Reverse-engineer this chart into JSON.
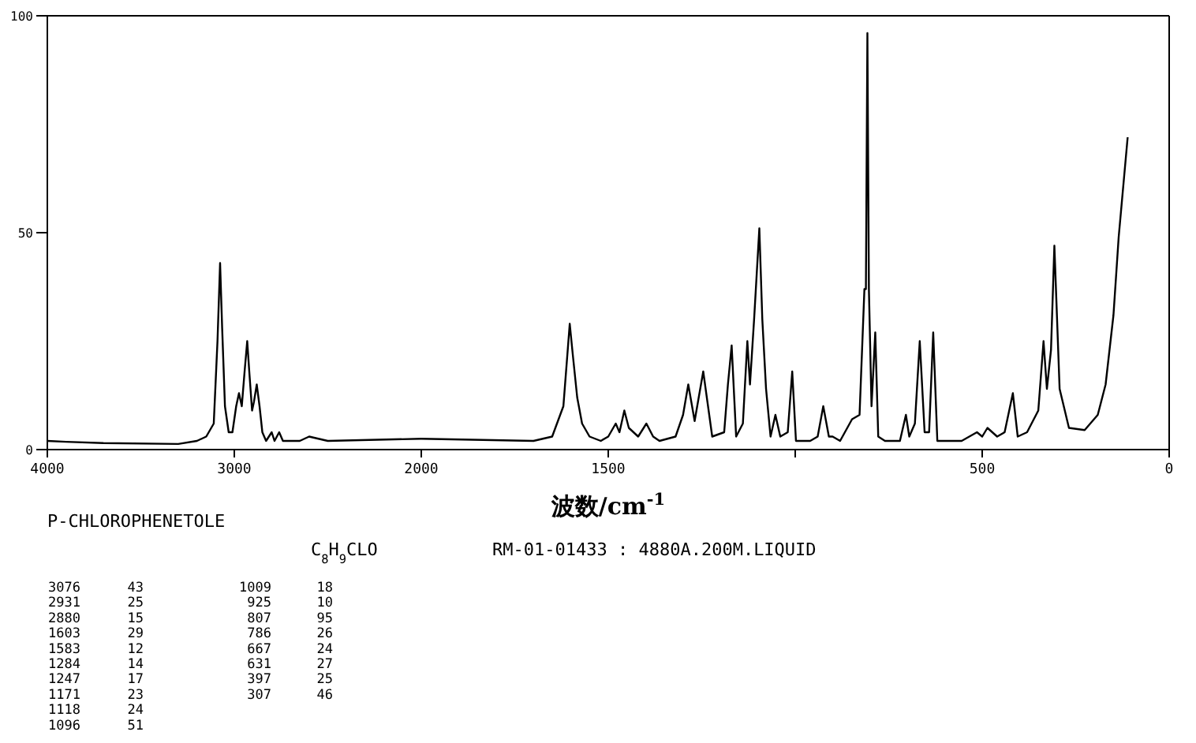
{
  "chart_data": [
    {
      "type": "line",
      "title": "P-CHLOROPHENETOLE",
      "subtitle": "C$_{8}$H$_{9}$CLO",
      "xlabel": "波数/cm$^{-1}$",
      "annotations": [
        "RM-01-01433 : 4880A.200M.LIQUID",
        "3076",
        "43",
        "2931",
        "25",
        "2880",
        "15",
        "1603",
        "29",
        "1583",
        "12",
        "1284",
        "14",
        "1247",
        "17",
        "1171",
        "23",
        "1118",
        "24",
        "1096",
        "51",
        "1009",
        "18",
        "925",
        "10",
        "807",
        "95",
        "786",
        "26",
        "667",
        "24",
        "631",
        "27",
        "397",
        "25",
        "307",
        "46"
      ],
      "x": [
        4000,
        3900,
        3700,
        3300,
        3200,
        3150,
        3110,
        3090,
        3076,
        3065,
        3050,
        3030,
        3010,
        2990,
        2975,
        2960,
        2945,
        2931,
        2920,
        2905,
        2895,
        2880,
        2865,
        2850,
        2830,
        2800,
        2785,
        2760,
        2740,
        2650,
        2600,
        2550,
        2500,
        2000
      ],
      "values": [
        2,
        1.8,
        1.5,
        1.3,
        2,
        3,
        6,
        25,
        43,
        28,
        10,
        4,
        4,
        10,
        13,
        10,
        18,
        25,
        18,
        9,
        11,
        15,
        10,
        4,
        2,
        4,
        2,
        4,
        2,
        2,
        3,
        2.5,
        2,
        2.5
      ],
      "color": "#000000",
      "xlim": [
        4000,
        2000
      ],
      "ylim": [
        0,
        100
      ],
      "xticks": [
        4000,
        3000,
        2000
      ],
      "yticks": [
        0,
        50,
        100
      ]
    },
    {
      "type": "line",
      "x": [
        2000,
        1700,
        1650,
        1620,
        1603,
        1595,
        1583,
        1570,
        1550,
        1520,
        1500,
        1480,
        1470,
        1457,
        1445,
        1420,
        1398,
        1380,
        1363,
        1320,
        1300,
        1286,
        1269,
        1246,
        1222,
        1190,
        1180,
        1170,
        1158,
        1140,
        1128,
        1121,
        1110,
        1096,
        1088,
        1078,
        1066,
        1053,
        1040,
        1020,
        1008,
        998,
        960,
        940,
        925,
        910,
        900,
        880,
        848,
        828,
        815,
        811,
        807,
        803,
        796,
        786,
        778,
        760,
        720,
        704,
        695,
        680,
        667,
        654,
        642,
        631,
        620,
        600,
        555,
        514,
        500,
        486,
        460,
        440,
        418,
        405,
        380,
        350,
        336,
        327,
        316,
        307,
        293,
        268,
        226,
        191,
        170,
        149,
        135,
        111
      ],
      "values": [
        2.5,
        2,
        3,
        10,
        29,
        22,
        12,
        6,
        3,
        2,
        3,
        6,
        4,
        9,
        5,
        3,
        6,
        3,
        2,
        3,
        8,
        15,
        6.6,
        18,
        3,
        4,
        15,
        24,
        3,
        6,
        25,
        15,
        30,
        51,
        30,
        14,
        3,
        8,
        3,
        4,
        18,
        2,
        2,
        3,
        10,
        3,
        3,
        2,
        7,
        8,
        37,
        37,
        96,
        37,
        10,
        27,
        3,
        2,
        2,
        8,
        3,
        6,
        25,
        4,
        4,
        27,
        2,
        2,
        2,
        4,
        3,
        5,
        3,
        4,
        13,
        3,
        4,
        9,
        25,
        14,
        23,
        47,
        14,
        5,
        4.5,
        8,
        15,
        31,
        49,
        72
      ],
      "color": "#000000",
      "xlim": [
        2000,
        0
      ],
      "ylim": [
        0,
        100
      ],
      "xticks": [
        {
          "value": 2000,
          "label": null
        },
        1500,
        {
          "value": 1000,
          "label": null
        },
        500,
        0
      ],
      "tick_labels": "x"
    }
  ]
}
